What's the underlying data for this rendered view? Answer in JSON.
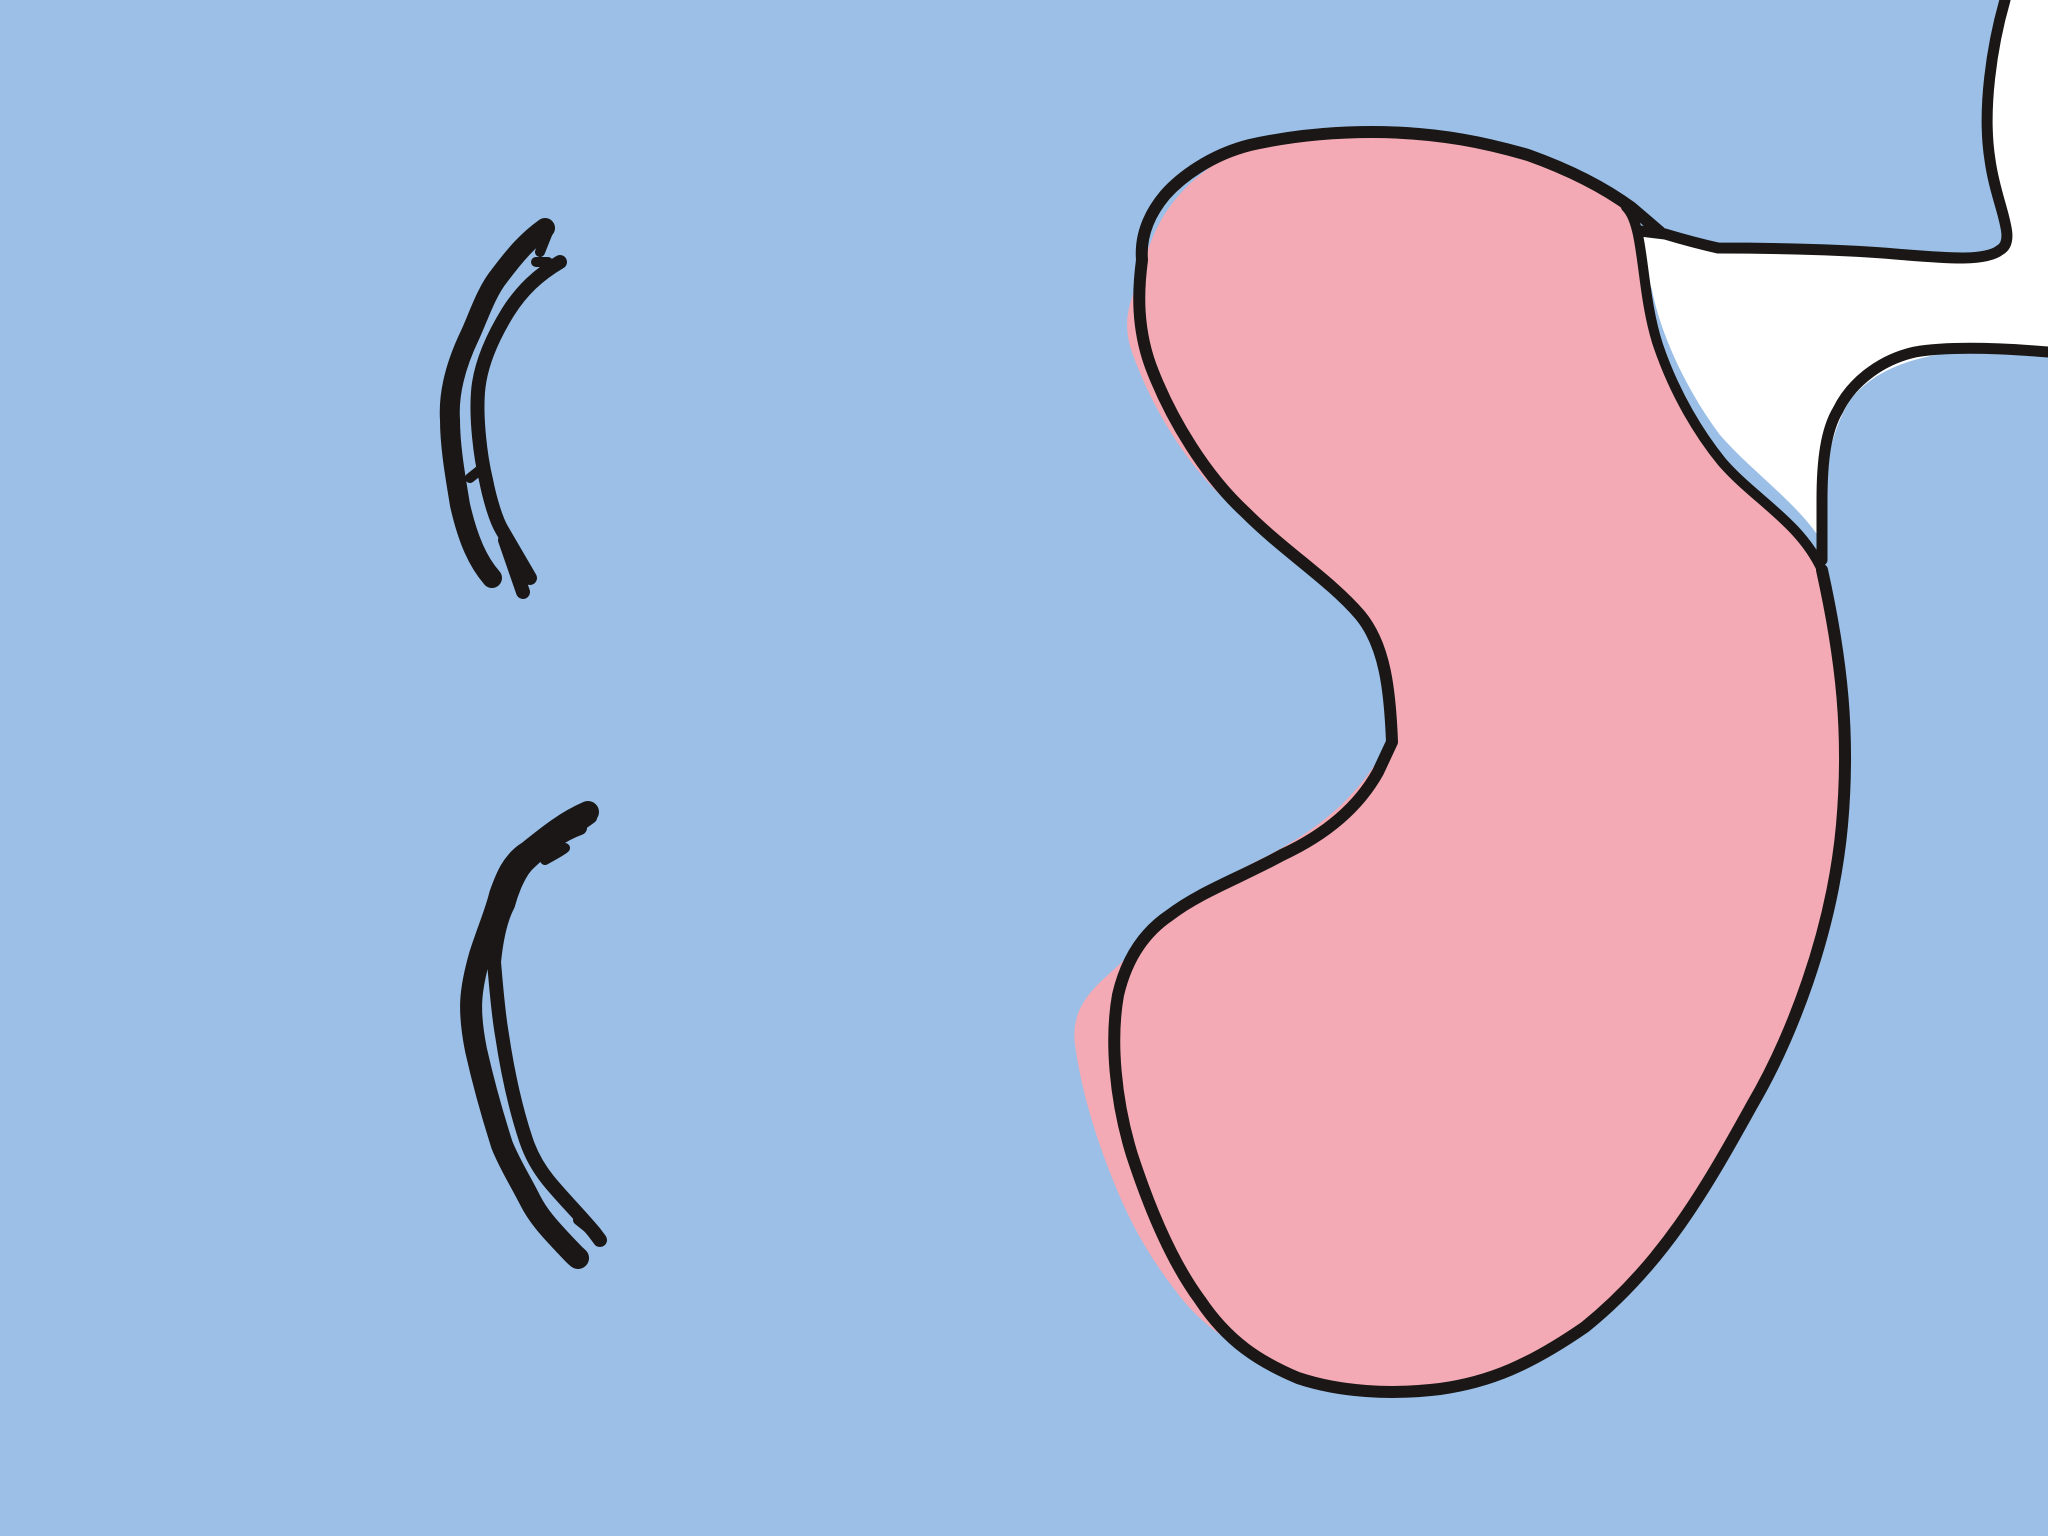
{
  "colors": {
    "background": "#9bbfe6",
    "tongue_fill": "#f3aab4",
    "outline": "#1a1716",
    "white_shape": "#ffffff"
  },
  "elements": [
    "upper-eyelash-mark",
    "lower-eyelash-mark",
    "tongue-shape",
    "white-tube-shape"
  ]
}
